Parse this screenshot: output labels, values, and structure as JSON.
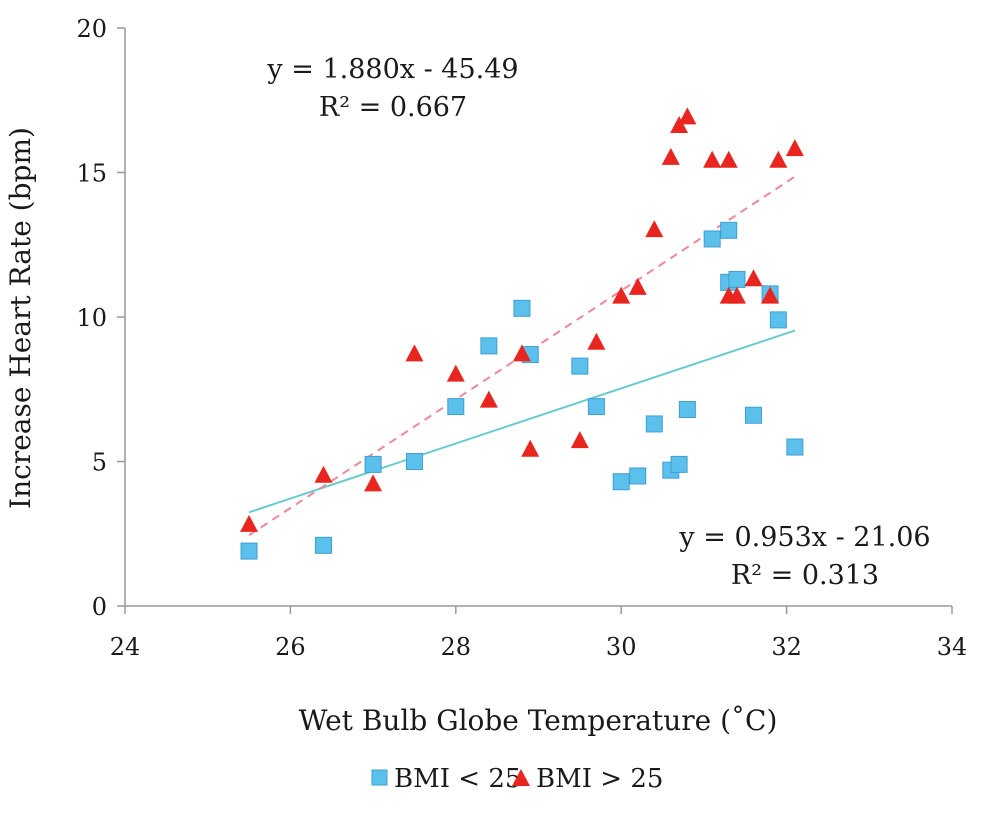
{
  "chart_data": {
    "type": "scatter",
    "title": "",
    "xlabel": "Wet Bulb Globe Temperature (˚C)",
    "ylabel": "Increase Heart Rate (bpm)",
    "xlim": [
      24,
      34
    ],
    "ylim": [
      0,
      20
    ],
    "x_ticks": [
      "24",
      "26",
      "28",
      "30",
      "32",
      "34"
    ],
    "y_ticks": [
      "0",
      "5",
      "10",
      "15",
      "20"
    ],
    "grid": false,
    "legend_position": "bottom",
    "series": [
      {
        "name": "BMI < 25",
        "marker": "square",
        "color": "#5bc0eb",
        "points": [
          [
            25.5,
            1.9
          ],
          [
            26.4,
            2.1
          ],
          [
            27.0,
            4.9
          ],
          [
            27.5,
            5.0
          ],
          [
            28.0,
            6.9
          ],
          [
            28.4,
            9.0
          ],
          [
            28.8,
            10.3
          ],
          [
            28.9,
            8.7
          ],
          [
            29.5,
            8.3
          ],
          [
            29.7,
            6.9
          ],
          [
            30.0,
            4.3
          ],
          [
            30.2,
            4.5
          ],
          [
            30.4,
            6.3
          ],
          [
            30.6,
            4.7
          ],
          [
            30.7,
            4.9
          ],
          [
            30.8,
            6.8
          ],
          [
            31.1,
            12.7
          ],
          [
            31.3,
            13.0
          ],
          [
            31.3,
            11.2
          ],
          [
            31.4,
            11.3
          ],
          [
            31.6,
            6.6
          ],
          [
            31.8,
            10.8
          ],
          [
            31.9,
            9.9
          ],
          [
            32.1,
            5.5
          ]
        ],
        "trendline": {
          "slope": 0.953,
          "intercept": -21.06,
          "x_range": [
            25.5,
            32.1
          ],
          "color": "#66cccc"
        },
        "equation": "y = 0.953x - 21.06",
        "r2": "R² = 0.313"
      },
      {
        "name": "BMI > 25",
        "marker": "triangle",
        "color": "#e8261f",
        "points": [
          [
            25.5,
            2.8
          ],
          [
            26.4,
            4.5
          ],
          [
            27.0,
            4.2
          ],
          [
            27.5,
            8.7
          ],
          [
            28.0,
            8.0
          ],
          [
            28.4,
            7.1
          ],
          [
            28.8,
            8.7
          ],
          [
            28.9,
            5.4
          ],
          [
            29.5,
            5.7
          ],
          [
            29.7,
            9.1
          ],
          [
            30.0,
            10.7
          ],
          [
            30.2,
            11.0
          ],
          [
            30.4,
            13.0
          ],
          [
            30.6,
            15.5
          ],
          [
            30.7,
            16.6
          ],
          [
            30.8,
            16.9
          ],
          [
            31.1,
            15.4
          ],
          [
            31.3,
            15.4
          ],
          [
            31.3,
            10.7
          ],
          [
            31.4,
            10.7
          ],
          [
            31.6,
            11.3
          ],
          [
            31.8,
            10.7
          ],
          [
            31.9,
            15.4
          ],
          [
            32.1,
            15.8
          ]
        ],
        "trendline": {
          "slope": 1.88,
          "intercept": -45.49,
          "x_range": [
            25.5,
            32.1
          ],
          "color": "#ee8899",
          "dashed": true
        },
        "equation": "y = 1.880x - 45.49",
        "r2": "R² = 0.667"
      }
    ]
  }
}
